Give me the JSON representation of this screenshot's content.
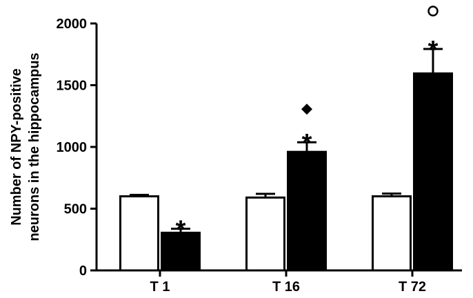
{
  "chart_data": {
    "type": "bar",
    "title": "",
    "xlabel": "",
    "ylabel_lines": [
      "Number of NPY-positive",
      "neurons in the hippocampus"
    ],
    "ylim": [
      0,
      2000
    ],
    "yticks": [
      "0",
      "500",
      "1000",
      "1500",
      "2000"
    ],
    "ytick_values": [
      0,
      500,
      1000,
      1500,
      2000
    ],
    "categories": [
      "T 1",
      "T 16",
      "T 72"
    ],
    "series": [
      {
        "fill": "#ffffff",
        "values": [
          600,
          590,
          600
        ],
        "errors": [
          12,
          30,
          22
        ]
      },
      {
        "fill": "#000000",
        "values": [
          305,
          960,
          1595
        ],
        "errors": [
          32,
          78,
          198
        ]
      }
    ],
    "annotations": [
      {
        "category": 0,
        "series": 1,
        "marks": [
          "*"
        ]
      },
      {
        "category": 1,
        "series": 1,
        "marks": [
          "*",
          "◆"
        ]
      },
      {
        "category": 2,
        "series": 1,
        "marks": [
          "*",
          "○"
        ]
      }
    ],
    "grid": false,
    "legend": "none"
  }
}
